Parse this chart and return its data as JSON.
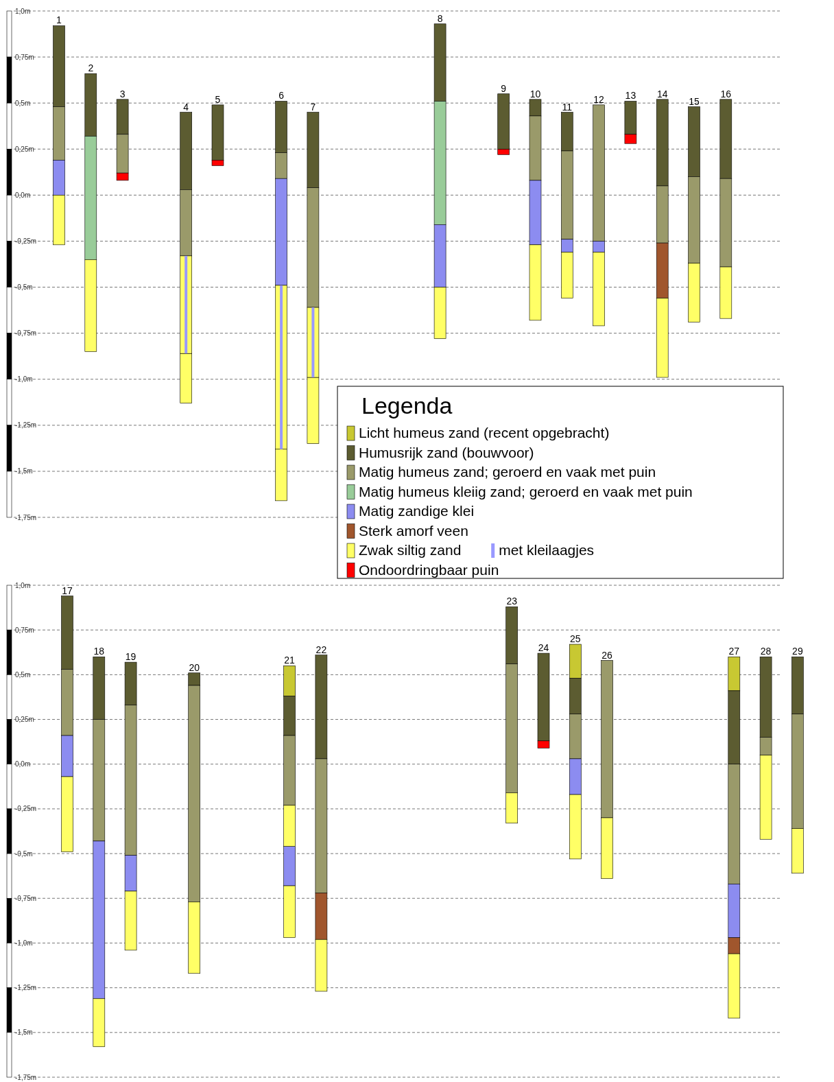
{
  "chart_data": [
    {
      "type": "bar",
      "legend_title": "Legenda",
      "legend": "bottom right",
      "grid": "y",
      "ylim": [
        -1.75,
        1.0
      ],
      "yticks": [
        {
          "value": 1.0,
          "label": "1,0m"
        },
        {
          "value": 0.75,
          "label": "0,75m"
        },
        {
          "value": 0.5,
          "label": "0,5m"
        },
        {
          "value": 0.25,
          "label": "0,25m"
        },
        {
          "value": 0,
          "label": "0,0m"
        },
        {
          "value": -0.25,
          "label": "-0,25m"
        },
        {
          "value": -0.5,
          "label": "-0,5m"
        },
        {
          "value": -0.75,
          "label": "-0,75m"
        },
        {
          "value": -1.0,
          "label": "-1,0m"
        },
        {
          "value": -1.25,
          "label": "-1,25m"
        },
        {
          "value": -1.5,
          "label": "-1,5m"
        },
        {
          "value": -1.75,
          "label": "-1,75m"
        }
      ],
      "categories": [
        "1",
        "2",
        "3",
        null,
        "4",
        "5",
        null,
        "6",
        "7",
        null,
        null,
        null,
        "8",
        null,
        "9",
        "10",
        "11",
        "12",
        "13",
        "14",
        "15",
        "16"
      ],
      "series": [
        {
          "name": "Licht humeus zand (recent opgebracht)",
          "color": "#c8c832",
          "base": [
            null,
            null,
            null,
            null,
            null,
            null,
            null,
            null,
            null,
            null,
            null,
            null,
            null,
            null,
            null,
            null,
            null,
            null,
            null,
            null,
            null,
            null
          ],
          "values": [
            null,
            null,
            null,
            null,
            null,
            null,
            null,
            null,
            null,
            null,
            null,
            null,
            null,
            null,
            null,
            null,
            null,
            null,
            null,
            null,
            null,
            null
          ]
        },
        {
          "name": "Humusrijk zand (bouwvoor)",
          "color": "#5c5c31",
          "base": [
            0.48,
            0.32,
            0.33,
            null,
            0.03,
            0.19,
            null,
            0.23,
            0.04,
            null,
            null,
            null,
            0.51,
            null,
            0.25,
            0.43,
            0.24,
            null,
            0.33,
            0.05,
            0.1,
            0.09
          ],
          "values": [
            0.44,
            0.34,
            0.19,
            null,
            0.42,
            0.3,
            null,
            0.28,
            0.41,
            null,
            null,
            null,
            0.42,
            null,
            0.3,
            0.09,
            0.21,
            null,
            0.18,
            0.47,
            0.38,
            0.43
          ]
        },
        {
          "name": "Matig humeus zand; geroerd en vaak met puin",
          "color": "#9a9a6a",
          "base": [
            0.19,
            null,
            0.12,
            null,
            -0.33,
            null,
            null,
            0.09,
            -0.61,
            null,
            null,
            null,
            null,
            null,
            null,
            0.08,
            -0.24,
            -0.25,
            null,
            -0.26,
            -0.37,
            -0.39
          ],
          "values": [
            0.29,
            null,
            0.21,
            null,
            0.36,
            null,
            null,
            0.14,
            0.65,
            null,
            null,
            null,
            null,
            null,
            null,
            0.35,
            0.48,
            0.74,
            null,
            0.31,
            0.47,
            0.48
          ]
        },
        {
          "name": "Matig humeus kleiig zand; geroerd en vaak met puin",
          "color": "#99cc99",
          "base": [
            null,
            -0.35,
            null,
            null,
            null,
            null,
            null,
            null,
            null,
            null,
            null,
            null,
            -0.16,
            null,
            null,
            null,
            null,
            null,
            null,
            null,
            null,
            null
          ],
          "values": [
            null,
            0.67,
            null,
            null,
            null,
            null,
            null,
            null,
            null,
            null,
            null,
            null,
            0.67,
            null,
            null,
            null,
            null,
            null,
            null,
            null,
            null,
            null
          ]
        },
        {
          "name": "Matig zandige klei",
          "color": "#8c8cf0",
          "base": [
            0.0,
            null,
            null,
            null,
            null,
            null,
            null,
            -0.49,
            null,
            null,
            null,
            null,
            -0.5,
            null,
            null,
            -0.27,
            -0.31,
            -0.31,
            null,
            null,
            null,
            null
          ],
          "values": [
            0.19,
            null,
            null,
            null,
            null,
            null,
            null,
            0.58,
            null,
            null,
            null,
            null,
            0.34,
            null,
            null,
            0.35,
            0.07,
            0.06,
            null,
            null,
            null,
            null
          ]
        },
        {
          "name": "Sterk amorf veen",
          "color": "#a0562d",
          "base": [
            null,
            null,
            null,
            null,
            null,
            null,
            null,
            null,
            null,
            null,
            null,
            null,
            null,
            null,
            null,
            null,
            null,
            null,
            null,
            -0.56,
            null,
            null
          ],
          "values": [
            null,
            null,
            null,
            null,
            null,
            null,
            null,
            null,
            null,
            null,
            null,
            null,
            null,
            null,
            null,
            null,
            null,
            null,
            null,
            0.3,
            null,
            null
          ]
        },
        {
          "name": "Zwak siltig zand",
          "color": "#ffff66",
          "base": [
            -0.27,
            -0.85,
            null,
            null,
            -1.13,
            null,
            null,
            -1.66,
            -1.35,
            null,
            null,
            null,
            -0.78,
            null,
            null,
            -0.68,
            -0.56,
            -0.71,
            null,
            -0.99,
            -0.69,
            -0.67
          ],
          "values": [
            0.27,
            0.5,
            null,
            null,
            0.27,
            null,
            null,
            0.28,
            0.36,
            null,
            null,
            null,
            0.28,
            null,
            null,
            0.41,
            0.25,
            0.4,
            null,
            0.43,
            0.32,
            0.28
          ]
        },
        {
          "color": "#ffff66",
          "base": [
            null,
            null,
            null,
            null,
            -0.86,
            null,
            null,
            -1.38,
            -0.99,
            null,
            null,
            null,
            null,
            null,
            null,
            null,
            null,
            null,
            null,
            null,
            null,
            null
          ],
          "values": [
            null,
            null,
            null,
            null,
            0.53,
            null,
            null,
            0.89,
            0.38,
            null,
            null,
            null,
            null,
            null,
            null,
            null,
            null,
            null,
            null,
            null,
            null,
            null
          ]
        },
        {
          "name": "met kleilaagjes",
          "color": "#9999ff",
          "base": [
            null,
            null,
            null,
            null,
            -0.86,
            null,
            null,
            -1.38,
            -0.99,
            null,
            null,
            null,
            null,
            null,
            null,
            null,
            null,
            null,
            null,
            null,
            null,
            null
          ],
          "values": [
            null,
            null,
            null,
            null,
            0.53,
            null,
            null,
            0.89,
            0.38,
            null,
            null,
            null,
            null,
            null,
            null,
            null,
            null,
            null,
            null,
            null,
            null,
            null
          ]
        },
        {
          "name": "Ondoordringbaar puin",
          "color": "#ff0000",
          "base": [
            null,
            null,
            0.08,
            null,
            null,
            0.16,
            null,
            null,
            null,
            null,
            null,
            null,
            null,
            null,
            0.22,
            null,
            null,
            null,
            0.28,
            null,
            null,
            null
          ],
          "values": [
            null,
            null,
            0.04,
            null,
            null,
            0.03,
            null,
            null,
            null,
            null,
            null,
            null,
            null,
            null,
            0.03,
            null,
            null,
            null,
            0.05,
            null,
            null,
            null
          ]
        }
      ]
    },
    {
      "type": "bar",
      "grid": "y",
      "ylim": [
        -1.75,
        1.0
      ],
      "yticks": [
        {
          "value": 1.0,
          "label": "1,0m"
        },
        {
          "value": 0.75,
          "label": "0,75m"
        },
        {
          "value": 0.5,
          "label": "0,5m"
        },
        {
          "value": 0.25,
          "label": "0,25m"
        },
        {
          "value": 0,
          "label": "0,0m"
        },
        {
          "value": -0.25,
          "label": "-0,25m"
        },
        {
          "value": -0.5,
          "label": "-0,5m"
        },
        {
          "value": -0.75,
          "label": "-0,75m"
        },
        {
          "value": -1.0,
          "label": "-1,0m"
        },
        {
          "value": -1.25,
          "label": "-1,25m"
        },
        {
          "value": -1.5,
          "label": "-1,5m"
        },
        {
          "value": -1.75,
          "label": "-1,75m"
        }
      ],
      "categories": [
        "17",
        "18",
        "19",
        null,
        "20",
        null,
        null,
        "21",
        "22",
        null,
        null,
        null,
        null,
        null,
        "23",
        "24",
        "25",
        "26",
        null,
        null,
        null,
        "27",
        "28",
        "29"
      ],
      "series": [
        {
          "color": "#c8c832",
          "base": [
            null,
            null,
            null,
            null,
            null,
            null,
            null,
            0.38,
            null,
            null,
            null,
            null,
            null,
            null,
            null,
            null,
            0.48,
            null,
            null,
            null,
            null,
            0.41,
            null,
            null
          ],
          "values": [
            null,
            null,
            null,
            null,
            null,
            null,
            null,
            0.17,
            null,
            null,
            null,
            null,
            null,
            null,
            null,
            null,
            0.19,
            null,
            null,
            null,
            null,
            0.19,
            null,
            null
          ]
        },
        {
          "color": "#5c5c31",
          "base": [
            0.53,
            0.25,
            0.33,
            null,
            0.44,
            null,
            null,
            0.16,
            0.03,
            null,
            null,
            null,
            null,
            null,
            0.56,
            0.13,
            0.28,
            null,
            null,
            null,
            null,
            0.0,
            0.15,
            0.28
          ],
          "values": [
            0.41,
            0.35,
            0.24,
            null,
            0.07,
            null,
            null,
            0.22,
            0.58,
            null,
            null,
            null,
            null,
            null,
            0.32,
            0.49,
            0.2,
            null,
            null,
            null,
            null,
            0.41,
            0.45,
            0.32
          ]
        },
        {
          "color": "#9a9a6a",
          "base": [
            0.16,
            -0.43,
            -0.51,
            null,
            -0.77,
            null,
            null,
            -0.23,
            -0.72,
            null,
            null,
            null,
            null,
            null,
            -0.16,
            null,
            0.03,
            -0.3,
            null,
            null,
            null,
            -0.67,
            0.05,
            -0.36
          ],
          "values": [
            0.37,
            0.68,
            0.84,
            null,
            1.21,
            null,
            null,
            0.39,
            0.75,
            null,
            null,
            null,
            null,
            null,
            0.72,
            null,
            0.25,
            0.88,
            null,
            null,
            null,
            0.67,
            0.1,
            0.64
          ]
        },
        {
          "color": "#8c8cf0",
          "base": [
            -0.07,
            -1.31,
            -0.71,
            null,
            null,
            null,
            null,
            -0.68,
            null,
            null,
            null,
            null,
            null,
            null,
            null,
            null,
            -0.17,
            null,
            null,
            null,
            null,
            -0.97,
            null,
            null
          ],
          "values": [
            0.23,
            0.88,
            0.2,
            null,
            null,
            null,
            null,
            0.22,
            null,
            null,
            null,
            null,
            null,
            null,
            null,
            null,
            0.2,
            null,
            null,
            null,
            null,
            0.3,
            null,
            null
          ]
        },
        {
          "color": "#a0562d",
          "base": [
            null,
            null,
            null,
            null,
            null,
            null,
            null,
            null,
            -0.98,
            null,
            null,
            null,
            null,
            null,
            null,
            null,
            null,
            null,
            null,
            null,
            null,
            -1.06,
            null,
            null
          ],
          "values": [
            null,
            null,
            null,
            null,
            null,
            null,
            null,
            null,
            0.26,
            null,
            null,
            null,
            null,
            null,
            null,
            null,
            null,
            null,
            null,
            null,
            null,
            0.09,
            null,
            null
          ]
        },
        {
          "color": "#ffff66",
          "base": [
            -0.49,
            -1.58,
            -1.04,
            null,
            -1.17,
            null,
            null,
            -0.46,
            -1.27,
            null,
            null,
            null,
            null,
            null,
            -0.33,
            null,
            -0.53,
            -0.64,
            null,
            null,
            null,
            -1.42,
            -0.42,
            -0.61
          ],
          "values": [
            0.42,
            0.27,
            0.33,
            null,
            0.4,
            null,
            null,
            0.23,
            0.29,
            null,
            null,
            null,
            null,
            null,
            0.17,
            null,
            0.36,
            0.34,
            null,
            null,
            null,
            0.36,
            0.47,
            0.25
          ]
        },
        {
          "color": "#ffff66",
          "base": [
            null,
            null,
            null,
            null,
            null,
            null,
            null,
            -0.97,
            null,
            null,
            null,
            null,
            null,
            null,
            null,
            null,
            null,
            null,
            null,
            null,
            null,
            null,
            null,
            null
          ],
          "values": [
            null,
            null,
            null,
            null,
            null,
            null,
            null,
            0.29,
            null,
            null,
            null,
            null,
            null,
            null,
            null,
            null,
            null,
            null,
            null,
            null,
            null,
            null,
            null,
            null
          ]
        },
        {
          "color": "#ff0000",
          "base": [
            null,
            null,
            null,
            null,
            null,
            null,
            null,
            null,
            null,
            null,
            null,
            null,
            null,
            null,
            null,
            0.09,
            null,
            null,
            null,
            null,
            null,
            null,
            null,
            null
          ],
          "values": [
            null,
            null,
            null,
            null,
            null,
            null,
            null,
            null,
            null,
            null,
            null,
            null,
            null,
            null,
            null,
            0.04,
            null,
            null,
            null,
            null,
            null,
            null,
            null,
            null
          ]
        }
      ]
    }
  ]
}
